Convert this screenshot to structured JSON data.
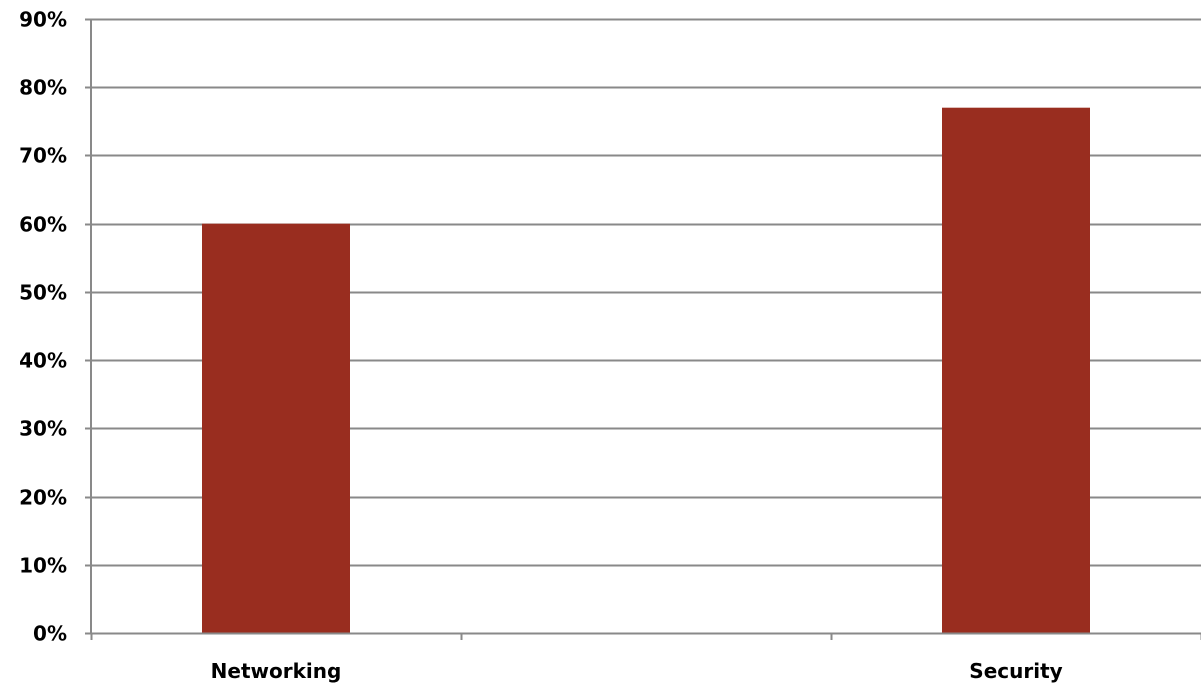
{
  "chart_data": {
    "type": "bar",
    "categories": [
      "Networking",
      "",
      "Security"
    ],
    "values": [
      0.6,
      null,
      0.77
    ],
    "y_ticks": [
      "0%",
      "10%",
      "20%",
      "30%",
      "40%",
      "50%",
      "60%",
      "70%",
      "80%",
      "90%"
    ],
    "ylim": [
      0,
      0.9
    ],
    "grid": true,
    "legend": "none",
    "title": "",
    "xlabel": "",
    "ylabel": "",
    "colors": {
      "bar": "#992d1f",
      "grid": "#898989",
      "axis": "#898989"
    }
  }
}
